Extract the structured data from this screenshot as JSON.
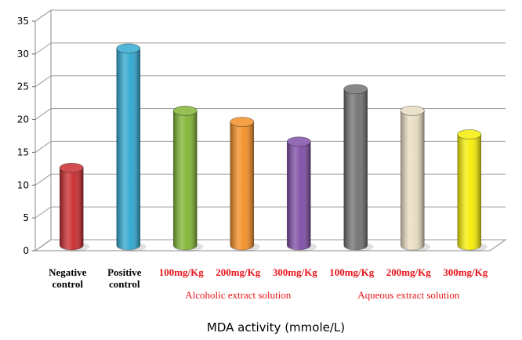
{
  "chart_data": {
    "type": "bar",
    "title": "",
    "xlabel": "MDA activity (mmole/L)",
    "ylabel": "",
    "ylim": [
      0,
      35
    ],
    "yticks": [
      0,
      5,
      10,
      15,
      20,
      25,
      30,
      35
    ],
    "grid": true,
    "legend": "none",
    "style": "3d-cylinder",
    "categories": [
      [
        "Negative",
        "control"
      ],
      [
        "Positive",
        "control"
      ],
      [
        "100mg/Kg"
      ],
      [
        "200mg/Kg"
      ],
      [
        "300mg/Kg"
      ],
      [
        "100mg/Kg"
      ],
      [
        "200mg/Kg"
      ],
      [
        "300mg/Kg"
      ]
    ],
    "category_colors": [
      "#000000",
      "#000000",
      "#e8141b",
      "#e8141b",
      "#e8141b",
      "#e8141b",
      "#e8141b",
      "#e8141b"
    ],
    "values": [
      11.8,
      30,
      20.5,
      18.8,
      15.8,
      23.8,
      20.5,
      16.9
    ],
    "bar_colors": [
      "#c8262a",
      "#2ca7cf",
      "#7eb32e",
      "#f28c1f",
      "#7d4aa5",
      "#6e6e6e",
      "#e8dcc0",
      "#f5ec00"
    ],
    "groups": [
      {
        "label": "Alcoholic extract solution",
        "color": "#e8141b"
      },
      {
        "label": "Aqueous  extract solution",
        "color": "#e8141b"
      }
    ]
  }
}
